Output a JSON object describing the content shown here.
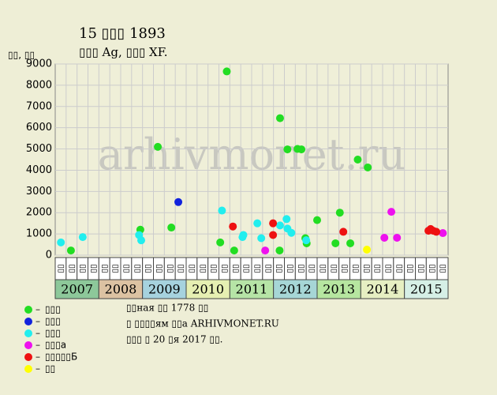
{
  "chart_data": {
    "type": "scatter",
    "title": "15 ▯▯▯ 1893",
    "subtitle": "▯▯▯ Ag, ▯▯▯ XF.",
    "y_label": "▯▯, ▯▯",
    "watermark": "arhivmonet.ru",
    "notes": [
      "▯▯ная ▯▯ 1778 ▯▯",
      "▯ ▯▯▯▯ям ▯▯а ARHIVMONET.RU",
      "▯▯▯ ▯ 20 ▯я 2017 ▯▯."
    ],
    "xlim": [
      2007,
      2016
    ],
    "xticks": [
      2007,
      2008,
      2009,
      2010,
      2011,
      2012,
      2013,
      2014,
      2015
    ],
    "band_colors": [
      "#8dc89a",
      "#dcc2a2",
      "#a6d2de",
      "#e6efb2",
      "#b6e4a6",
      "#a6d6d6",
      "#b6e6a0",
      "#e6efc2",
      "#d6efe6"
    ],
    "quarter_labels": [
      "▯▯",
      "▯▯",
      "▯▯",
      "▯▯",
      "▯▯",
      "▯▯",
      "▯▯",
      "▯▯",
      "▯▯",
      "▯▯",
      "▯▯",
      "▯▯",
      "▯▯",
      "▯▯",
      "▯▯",
      "▯▯",
      "▯▯",
      "▯▯",
      "▯▯",
      "▯▯",
      "▯▯",
      "▯▯",
      "▯▯",
      "▯▯",
      "▯▯",
      "▯▯",
      "▯▯",
      "▯▯",
      "▯▯",
      "▯▯",
      "▯▯",
      "▯▯",
      "▯▯",
      "▯▯",
      "▯▯",
      "▯▯"
    ],
    "ylim": [
      0,
      9000
    ],
    "yticks": [
      0,
      1000,
      2000,
      3000,
      4000,
      5000,
      6000,
      7000,
      8000,
      9000
    ],
    "grid": true,
    "series": [
      {
        "name": "▯▯▯",
        "color": "#22dd22",
        "x": [
          2007.36,
          2008.95,
          2009.35,
          2009.66,
          2010.78,
          2010.93,
          2011.1,
          2012.15,
          2012.14,
          2012.32,
          2012.55,
          2012.64,
          2012.73,
          2012.76,
          2013.0,
          2013.42,
          2013.52,
          2013.76,
          2013.93,
          2014.16
        ],
        "values": [
          220,
          1200,
          5100,
          1300,
          600,
          8650,
          220,
          6450,
          220,
          4980,
          5000,
          4980,
          800,
          560,
          1650,
          560,
          2000,
          560,
          4500,
          4130
        ]
      },
      {
        "name": "▯▯▯",
        "color": "#1122dd",
        "x": [
          2009.82
        ],
        "values": [
          2500
        ]
      },
      {
        "name": "▯▯▯",
        "color": "#22eeee",
        "x": [
          2007.13,
          2007.63,
          2008.92,
          2008.97,
          2010.82,
          2011.29,
          2011.31,
          2011.63,
          2011.72,
          2012.15,
          2012.3,
          2012.32,
          2012.41,
          2012.75
        ],
        "values": [
          600,
          850,
          950,
          700,
          2100,
          850,
          950,
          1500,
          800,
          1400,
          1700,
          1250,
          1050,
          700
        ]
      },
      {
        "name": "▯▯▯а",
        "color": "#ee11ee",
        "x": [
          2011.81,
          2014.54,
          2014.7,
          2014.83,
          2015.88
        ],
        "values": [
          220,
          820,
          2040,
          820,
          1040
        ]
      },
      {
        "name": "▯▯▯▯▯Б",
        "color": "#ee1111",
        "x": [
          2011.07,
          2011.99,
          2011.99,
          2013.6,
          2015.55,
          2015.6,
          2015.66,
          2015.73
        ],
        "values": [
          1350,
          1500,
          950,
          1100,
          1150,
          1230,
          1150,
          1100
        ]
      },
      {
        "name": "▯▯",
        "color": "#ffff00",
        "x": [
          2014.14
        ],
        "values": [
          260
        ]
      }
    ]
  }
}
